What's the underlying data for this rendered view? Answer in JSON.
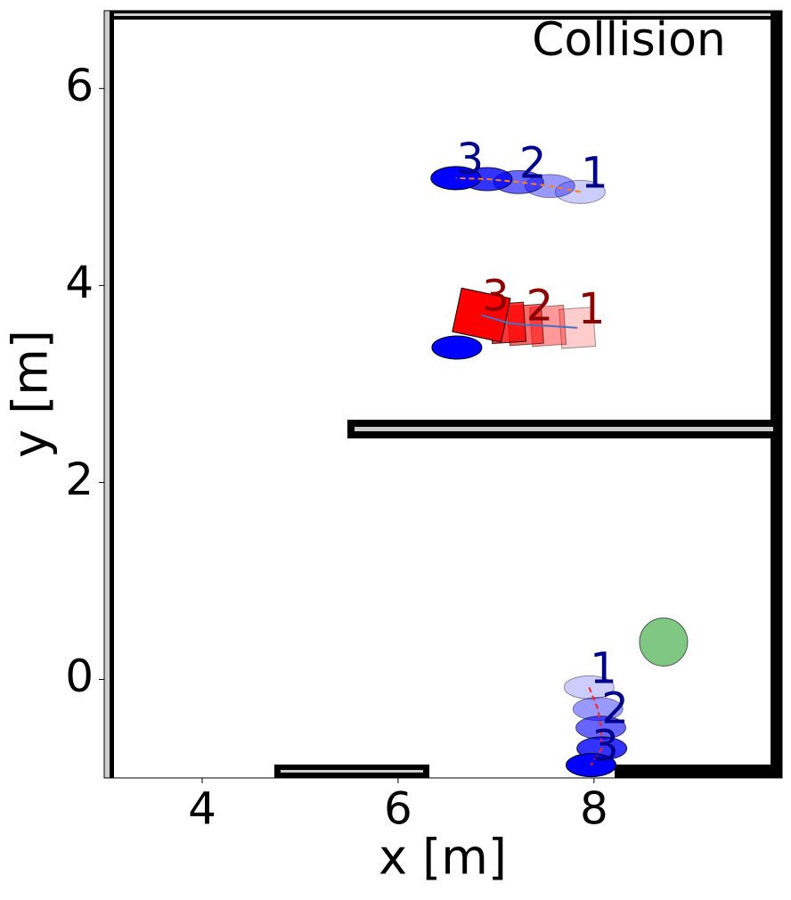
{
  "chart_data": {
    "type": "scatter",
    "title": "Collision",
    "x_label": "x [m]",
    "y_label": "y [m]",
    "xlim": [
      3.0,
      9.92
    ],
    "ylim": [
      -1.0,
      6.79
    ],
    "xticks": [
      4,
      6,
      8
    ],
    "yticks": [
      0,
      2,
      4,
      6
    ],
    "series": [
      {
        "marker": "ellipse",
        "color": "#0000ff",
        "line_color": "#ff7f0e",
        "line_style": "dashed",
        "x": [
          7.86,
          7.55,
          7.23,
          6.91,
          6.59
        ],
        "y": [
          4.95,
          5.01,
          5.05,
          5.08,
          5.09
        ],
        "labels": [
          "1",
          "2",
          "3"
        ],
        "label_color": "#00008b"
      },
      {
        "marker": "rect",
        "color": "#ff0000",
        "line_color": "#4472c4",
        "line_style": "solid",
        "x": [
          7.83,
          7.53,
          7.3,
          7.12,
          6.85
        ],
        "y": [
          3.57,
          3.59,
          3.6,
          3.62,
          3.7
        ],
        "labels": [
          "1",
          "2",
          "3"
        ],
        "label_color": "#8b0000"
      },
      {
        "marker": "ellipse",
        "color": "#0000ff",
        "line_color": "#ff2020",
        "line_style": "dashed",
        "x": [
          7.95,
          8.04,
          8.07,
          8.08,
          7.97
        ],
        "y": [
          -0.08,
          -0.3,
          -0.49,
          -0.7,
          -0.87
        ],
        "labels": [
          "1",
          "2",
          "3"
        ],
        "label_color": "#00008b"
      },
      {
        "marker": "ellipse",
        "color": "#0000ff",
        "x": [
          6.6
        ],
        "y": [
          3.37
        ]
      },
      {
        "marker": "circle",
        "color": "#4caf50",
        "x": [
          8.71
        ],
        "y": [
          0.38
        ]
      }
    ]
  }
}
